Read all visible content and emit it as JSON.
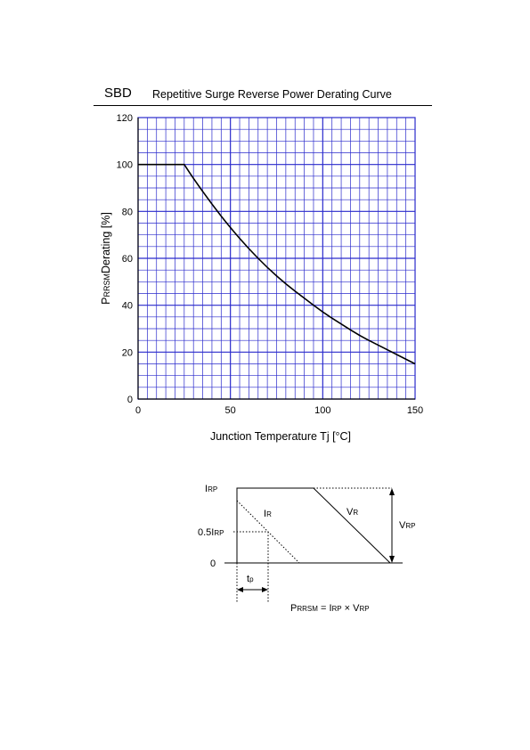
{
  "header": {
    "category": "SBD",
    "title": "Repetitive Surge Reverse Power Derating Curve"
  },
  "chart_data": {
    "type": "line",
    "title": "Repetitive Surge Reverse Power Derating Curve",
    "xlabel": "Junction Temperature  Tj  [°C]",
    "ylabel_main": "P",
    "ylabel_sub": "RRSM",
    "ylabel_rest": "Derating  [%]",
    "xlim": [
      0,
      150
    ],
    "ylim": [
      0,
      120
    ],
    "xticks": [
      0,
      50,
      100,
      150
    ],
    "yticks": [
      0,
      20,
      40,
      60,
      80,
      100,
      120
    ],
    "grid": true,
    "series": [
      {
        "x": [
          0,
          25,
          30,
          40,
          50,
          60,
          70,
          80,
          90,
          100,
          110,
          120,
          130,
          140,
          150
        ],
        "values": [
          100,
          100,
          94,
          83,
          73,
          64,
          56,
          49,
          43,
          37,
          32,
          27,
          23,
          19,
          15
        ]
      }
    ],
    "color": "#2a2acc"
  },
  "waveform": {
    "irp": "I",
    "irp_sub": "RP",
    "half_irp": "0.5I",
    "half_irp_sub": "RP",
    "zero": "0",
    "ir": "I",
    "ir_sub": "R",
    "vr": "V",
    "vr_sub": "R",
    "vrp": "V",
    "vrp_sub": "RP",
    "tp": "t",
    "tp_sub": "p",
    "formula_p": "P",
    "formula_p_sub": "RRSM",
    "formula_eq": " = I",
    "formula_i_sub": "RP",
    "formula_x": " × V",
    "formula_v_sub": "RP"
  }
}
